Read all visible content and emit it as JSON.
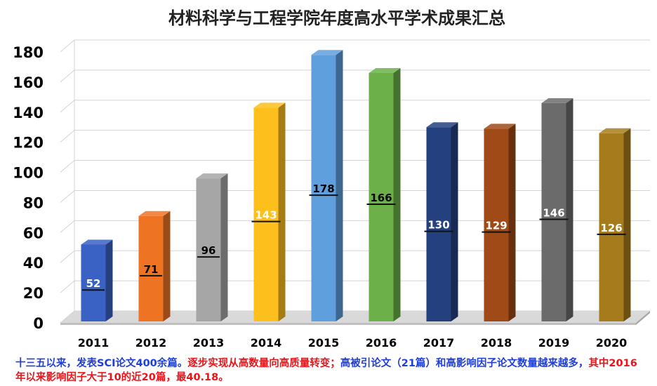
{
  "chart_data": {
    "type": "bar",
    "title": "材料科学与工程学院年度高水平学术成果汇总",
    "xlabel": "",
    "ylabel": "",
    "categories": [
      "2011",
      "2012",
      "2013",
      "2014",
      "2015",
      "2016",
      "2017",
      "2018",
      "2019",
      "2020"
    ],
    "values": [
      52,
      71,
      96,
      143,
      178,
      166,
      130,
      129,
      146,
      126
    ],
    "data_labels": [
      "52",
      "71",
      "96",
      "143",
      "178",
      "166",
      "130",
      "129",
      "146",
      "126"
    ],
    "ylim": [
      0,
      180
    ],
    "yticks": [
      "0",
      "20",
      "40",
      "60",
      "80",
      "100",
      "120",
      "140",
      "160",
      "180"
    ],
    "ytick_values": [
      0,
      20,
      40,
      60,
      80,
      100,
      120,
      140,
      160,
      180
    ],
    "grid": true,
    "bar_colors": [
      "#3a62c4",
      "#ee7424",
      "#a6a6a6",
      "#fcbf1c",
      "#5f9fde",
      "#6cb04a",
      "#25407f",
      "#a04a17",
      "#6b6b6b",
      "#a67b1c"
    ],
    "label_text_colors": [
      "#ffffff",
      "#000000",
      "#000000",
      "#ffffff",
      "#000000",
      "#000000",
      "#ffffff",
      "#ffffff",
      "#ffffff",
      "#ffffff"
    ]
  },
  "caption": {
    "part1": "十三五以来，发表SCI论文400余篇。",
    "part2": "逐步实现从高数量向高质量转变；",
    "part3": "高被引论文（21篇）和高影响因子论文数量越来越多，",
    "part4": "其中2016年以来影响因子大于10的近20篇，最40.18。"
  }
}
